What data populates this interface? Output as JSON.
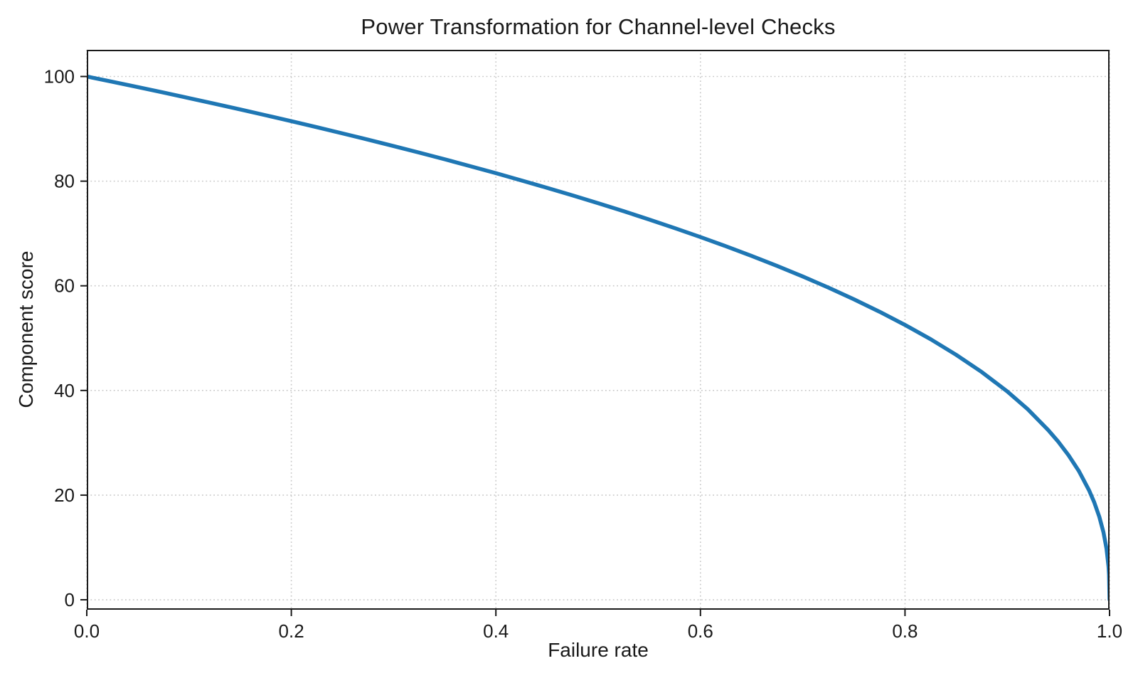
{
  "colors": {
    "background": "#ffffff",
    "line": "#1f77b4",
    "grid": "#c9c9c9",
    "axis": "#1a1a1a",
    "text": "#1a1a1a"
  },
  "chart_data": {
    "type": "line",
    "title": "Power Transformation for Channel-level Checks",
    "xlabel": "Failure rate",
    "ylabel": "Component score",
    "xlim": [
      0.0,
      1.0
    ],
    "ylim": [
      -1.9,
      105.1
    ],
    "x_tick_values": [
      0.0,
      0.2,
      0.4,
      0.6,
      0.8,
      1.0
    ],
    "x_tick_labels": [
      "0.0",
      "0.2",
      "0.4",
      "0.6",
      "0.8",
      "1.0"
    ],
    "y_tick_values": [
      0,
      20,
      40,
      60,
      80,
      100
    ],
    "y_tick_labels": [
      "0",
      "20",
      "40",
      "60",
      "80",
      "100"
    ],
    "grid": "dotted",
    "legend": "none",
    "line_width": 5.5,
    "formula": "score = 100 * (1 - failure_rate)^0.4",
    "series": [
      {
        "name": "Component score",
        "color": "#1f77b4",
        "points": [
          [
            0,
            100
          ],
          [
            0.025,
            98.99
          ],
          [
            0.05,
            97.97
          ],
          [
            0.075,
            96.93
          ],
          [
            0.1,
            95.87
          ],
          [
            0.125,
            94.8
          ],
          [
            0.15,
            93.71
          ],
          [
            0.175,
            92.59
          ],
          [
            0.2,
            91.46
          ],
          [
            0.225,
            90.31
          ],
          [
            0.25,
            89.13
          ],
          [
            0.275,
            87.93
          ],
          [
            0.3,
            86.7
          ],
          [
            0.325,
            85.45
          ],
          [
            0.35,
            84.17
          ],
          [
            0.375,
            82.86
          ],
          [
            0.4,
            81.52
          ],
          [
            0.425,
            80.14
          ],
          [
            0.45,
            78.73
          ],
          [
            0.475,
            77.28
          ],
          [
            0.5,
            75.79
          ],
          [
            0.525,
            74.25
          ],
          [
            0.55,
            72.66
          ],
          [
            0.575,
            71.02
          ],
          [
            0.6,
            69.31
          ],
          [
            0.625,
            67.55
          ],
          [
            0.65,
            65.71
          ],
          [
            0.675,
            63.79
          ],
          [
            0.7,
            61.78
          ],
          [
            0.725,
            59.67
          ],
          [
            0.75,
            57.43
          ],
          [
            0.775,
            55.06
          ],
          [
            0.8,
            52.53
          ],
          [
            0.825,
            49.8
          ],
          [
            0.85,
            46.82
          ],
          [
            0.875,
            43.53
          ],
          [
            0.9,
            39.81
          ],
          [
            0.92,
            36.41
          ],
          [
            0.94,
            32.45
          ],
          [
            0.95,
            30.17
          ],
          [
            0.96,
            27.59
          ],
          [
            0.97,
            24.6
          ],
          [
            0.98,
            20.91
          ],
          [
            0.985,
            18.64
          ],
          [
            0.99,
            15.85
          ],
          [
            0.994,
            12.92
          ],
          [
            0.997,
            9.79
          ],
          [
            0.999,
            6.31
          ],
          [
            0.9995,
            4.78
          ],
          [
            1,
            0
          ]
        ]
      }
    ]
  }
}
